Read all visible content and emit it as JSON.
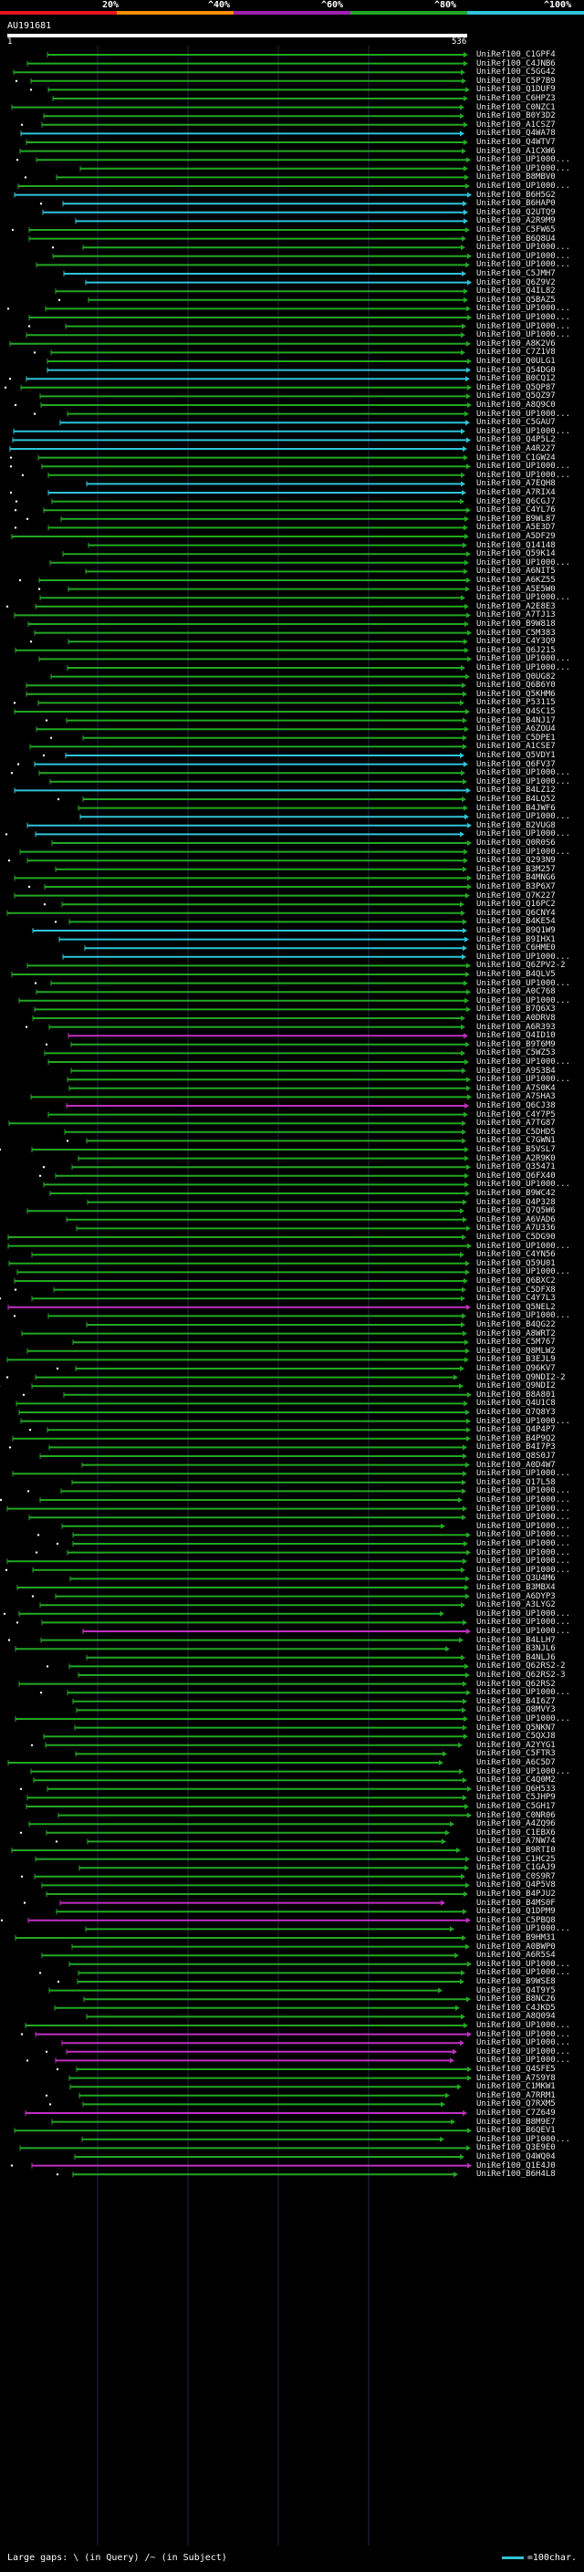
{
  "legend": {
    "labels": [
      "20%",
      "^40%",
      "^60%",
      "^80%",
      "^100%"
    ],
    "colors": [
      "#e8151b",
      "#ff8c00",
      "#a020b0",
      "#22a822",
      "#2ec4d8"
    ]
  },
  "query": {
    "title": "AU191681",
    "start": "1",
    "end": "536"
  },
  "hits": [
    "UniRef100_C1GPF4",
    "UniRef100_C4JNB6",
    "UniRef100_C5GG42",
    "UniRef100_C5P7B9",
    "UniRef100_Q1DUF9",
    "UniRef100_C6HPZ3",
    "UniRef100_C0NZC1",
    "UniRef100_B0Y3D2",
    "UniRef100_A1CSZ7",
    "UniRef100_Q4WA78",
    "UniRef100_Q4WTV7",
    "UniRef100_A1CXW6",
    "UniRef100_UP1000...",
    "UniRef100_UP1000...",
    "UniRef100_B8MBV0",
    "UniRef100_UP1000...",
    "UniRef100_B6H5G2",
    "UniRef100_B6HAP0",
    "UniRef100_Q2UTQ9",
    "UniRef100_A2R9M9",
    "UniRef100_C5FW65",
    "UniRef100_B6Q8U4",
    "UniRef100_UP1000...",
    "UniRef100_UP1000...",
    "UniRef100_UP1000...",
    "UniRef100_C5JMH7",
    "UniRef100_Q6Z9V2",
    "UniRef100_Q4IL82",
    "UniRef100_Q5BAZ5",
    "UniRef100_UP1000...",
    "UniRef100_UP1000...",
    "UniRef100_UP1000...",
    "UniRef100_UP1000...",
    "UniRef100_A8K2V6",
    "UniRef100_C7Z1V8",
    "UniRef100_Q0ULG1",
    "UniRef100_Q54DG0",
    "UniRef100_B0CQ12",
    "UniRef100_Q5QP87",
    "UniRef100_Q5QZ97",
    "UniRef100_A8Q9C0",
    "UniRef100_UP1000...",
    "UniRef100_C5GAU7",
    "UniRef100_UP1000...",
    "UniRef100_Q4P5L2",
    "UniRef100_A4R227",
    "UniRef100_C1GW24",
    "UniRef100_UP1000...",
    "UniRef100_UP1000...",
    "UniRef100_A7EQH8",
    "UniRef100_A7RIX4",
    "UniRef100_Q6CGJ7",
    "UniRef100_C4YL76",
    "UniRef100_B9WL87",
    "UniRef100_A5E3D7",
    "UniRef100_A5DF29",
    "UniRef100_Q14148",
    "UniRef100_Q59K14",
    "UniRef100_UP1000...",
    "UniRef100_A6NIT5",
    "UniRef100_A6KZ55",
    "UniRef100_A5E5W0",
    "UniRef100_UP1000...",
    "UniRef100_A2E8E3",
    "UniRef100_A7TJ13",
    "UniRef100_B9W818",
    "UniRef100_C5M383",
    "UniRef100_C4Y3Q9",
    "UniRef100_Q6J215",
    "UniRef100_UP1000...",
    "UniRef100_UP1000...",
    "UniRef100_Q0UG82",
    "UniRef100_Q6B6Y0",
    "UniRef100_Q5KHM6",
    "UniRef100_P53115",
    "UniRef100_Q4SC15",
    "UniRef100_B4NJ17",
    "UniRef100_A6ZOU4",
    "UniRef100_C5DPE1",
    "UniRef100_A1CSE7",
    "UniRef100_Q5VDY1",
    "UniRef100_Q6FV37",
    "UniRef100_UP1000...",
    "UniRef100_UP1000...",
    "UniRef100_B4LZ12",
    "UniRef100_B4LQ52",
    "UniRef100_B4JWF6",
    "UniRef100_UP1000...",
    "UniRef100_B2VUG8",
    "UniRef100_UP1000...",
    "UniRef100_Q0R0S6",
    "UniRef100_UP1000...",
    "UniRef100_Q293N9",
    "UniRef100_B3M257",
    "UniRef100_B4MNG6",
    "UniRef100_B3P6X7",
    "UniRef100_Q7K227",
    "UniRef100_Q16PC2",
    "UniRef100_Q6CNY4",
    "UniRef100_B4KE54",
    "UniRef100_B9Q1W9",
    "UniRef100_B9IHX1",
    "UniRef100_C6HME0",
    "UniRef100_UP1000...",
    "UniRef100_Q6ZPV2-2",
    "UniRef100_B4QLV5",
    "UniRef100_UP1000...",
    "UniRef100_A0C768",
    "UniRef100_UP1000...",
    "UniRef100_B7Q6X3",
    "UniRef100_A0DRV8",
    "UniRef100_A6R393",
    "UniRef100_Q4ID10",
    "UniRef100_B9T6M9",
    "UniRef100_C5WZ53",
    "UniRef100_UP1000...",
    "UniRef100_A9S3B4",
    "UniRef100_UP1000...",
    "UniRef100_A7S0K4",
    "UniRef100_A7SHA3",
    "UniRef100_Q6CJ38",
    "UniRef100_C4Y7P5",
    "UniRef100_A7TG87",
    "UniRef100_C5DHD5",
    "UniRef100_C7GWN1",
    "UniRef100_B5VSL7",
    "UniRef100_A2R9K0",
    "UniRef100_Q35471",
    "UniRef100_Q6FX40",
    "UniRef100_UP1000...",
    "UniRef100_B9WC42",
    "UniRef100_Q4P328",
    "UniRef100_Q7Q5W6",
    "UniRef100_A6VAD6",
    "UniRef100_A7U336",
    "UniRef100_C5DG90",
    "UniRef100_UP1000...",
    "UniRef100_C4YN56",
    "UniRef100_Q59U01",
    "UniRef100_UP1000...",
    "UniRef100_Q6BXC2",
    "UniRef100_C5DFX8",
    "UniRef100_C4Y7L3",
    "UniRef100_Q5NEL2",
    "UniRef100_UP1000...",
    "UniRef100_B4QG22",
    "UniRef100_A8WRT2",
    "UniRef100_C5M767",
    "UniRef100_Q8MLW2",
    "UniRef100_B3EJL9",
    "UniRef100_Q96KV7",
    "UniRef100_Q9NDI2-2",
    "UniRef100_Q9NDI2",
    "UniRef100_B8A801",
    "UniRef100_Q4U1C8",
    "UniRef100_Q7Q8Y3",
    "UniRef100_UP1000...",
    "UniRef100_Q4P4P7",
    "UniRef100_B4P9Q2",
    "UniRef100_B4I7P3",
    "UniRef100_Q8S0J7",
    "UniRef100_A0D4W7",
    "UniRef100_UP1000...",
    "UniRef100_Q17L58",
    "UniRef100_UP1000...",
    "UniRef100_UP1000...",
    "UniRef100_UP1000...",
    "UniRef100_UP1000...",
    "UniRef100_UP1000...",
    "UniRef100_UP1000...",
    "UniRef100_UP1000...",
    "UniRef100_UP1000...",
    "UniRef100_UP1000...",
    "UniRef100_UP1000...",
    "UniRef100_Q3U4M6",
    "UniRef100_B3MBX4",
    "UniRef100_A6DYP3",
    "UniRef100_A3LYG2",
    "UniRef100_UP1000...",
    "UniRef100_UP1000...",
    "UniRef100_UP1000...",
    "UniRef100_B4LLH7",
    "UniRef100_B3NJL6",
    "UniRef100_B4NLJ6",
    "UniRef100_Q62RS2-2",
    "UniRef100_Q62RS2-3",
    "UniRef100_Q62RS2",
    "UniRef100_UP1000...",
    "UniRef100_B4I6Z7",
    "UniRef100_Q8MVY3",
    "UniRef100_UP1000...",
    "UniRef100_Q5NKN7",
    "UniRef100_C5QXJ8",
    "UniRef100_A2YYG1",
    "UniRef100_C5FTR3",
    "UniRef100_A6C5D7",
    "UniRef100_UP1000...",
    "UniRef100_C4Q0M2",
    "UniRef100_Q6H533",
    "UniRef100_C5JHP9",
    "UniRef100_C5GH17",
    "UniRef100_C0NR06",
    "UniRef100_A4ZQ96",
    "UniRef100_C1EBX6",
    "UniRef100_A7NW74",
    "UniRef100_B9RTI0",
    "UniRef100_C1HC25",
    "UniRef100_C1GAJ9",
    "UniRef100_C0S9R7",
    "UniRef100_Q4P5V8",
    "UniRef100_B4PJU2",
    "UniRef100_B4MS0F",
    "UniRef100_Q1DPM9",
    "UniRef100_C5PBQ8",
    "UniRef100_UP1000...",
    "UniRef100_B9HM31",
    "UniRef100_A0BWP0",
    "UniRef100_A6R5S4",
    "UniRef100_UP1000...",
    "UniRef100_UP1000...",
    "UniRef100_B9WSE8",
    "UniRef100_Q4T9Y5",
    "UniRef100_B8NC26",
    "UniRef100_C4JKD5",
    "UniRef100_A8Q094",
    "UniRef100_UP1000...",
    "UniRef100_UP1000...",
    "UniRef100_UP1000...",
    "UniRef100_UP1000...",
    "UniRef100_UP1000...",
    "UniRef100_Q4SFE5",
    "UniRef100_A7S9Y8",
    "UniRef100_C1MKW1",
    "UniRef100_A7RRM1",
    "UniRef100_Q7RXM5",
    "UniRef100_C7Z649",
    "UniRef100_B8M9E7",
    "UniRef100_B6QEV1",
    "UniRef100_UP1000...",
    "UniRef100_Q3E9E0",
    "UniRef100_Q4WQ04",
    "UniRef100_Q1E4J0",
    "UniRef100_B6H4L8"
  ],
  "footer": {
    "gaps_text": "Large gaps: \\ (in Query) /~ (in Subject)",
    "scale_text": "=100char."
  }
}
